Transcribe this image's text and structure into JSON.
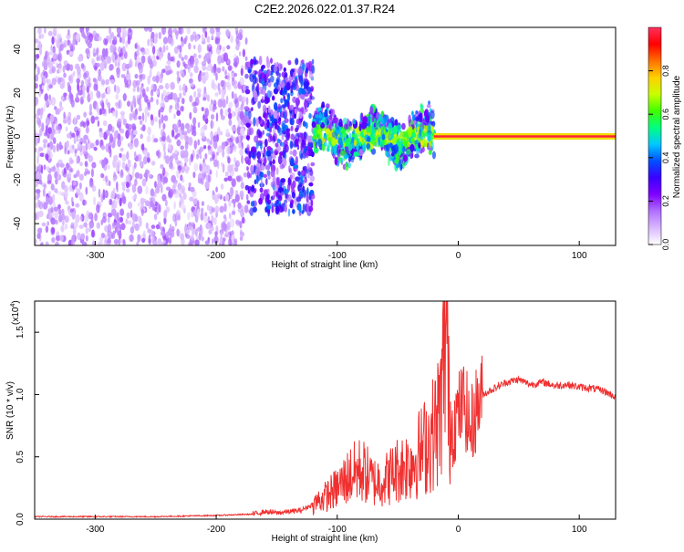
{
  "title": "C2E2.2026.022.01.37.R24",
  "chart_data": [
    {
      "type": "heatmap",
      "xlabel": "Height of straight line (km)",
      "ylabel": "Frequency (Hz)",
      "xlim": [
        -350,
        130
      ],
      "ylim": [
        -50,
        50
      ],
      "x_ticks": [
        "-300",
        "-200",
        "-100",
        "0",
        "100"
      ],
      "x_tick_values": [
        -300,
        -200,
        -100,
        0,
        100
      ],
      "y_ticks": [
        "-40",
        "-20",
        "0",
        "20",
        "40"
      ],
      "y_tick_values": [
        -40,
        -20,
        0,
        20,
        40
      ],
      "colorbar": {
        "label": "Normalized spectral amplitude",
        "range": [
          0,
          1
        ],
        "ticks": [
          "0.0",
          "0.2",
          "0.4",
          "0.6",
          "0.8"
        ],
        "tick_values": [
          0,
          0.2,
          0.4,
          0.6,
          0.8
        ],
        "stops": [
          "#ffffff",
          "#d9b8ff",
          "#b070ff",
          "#8000ff",
          "#3a00ff",
          "#0050ff",
          "#00c8ff",
          "#00ff80",
          "#40ff00",
          "#c8ff00",
          "#ffd000",
          "#ff7000",
          "#ff0000",
          "#ff3060"
        ]
      },
      "regions": [
        {
          "x_from": -350,
          "x_to": -175,
          "description_level": 0.15,
          "spread": 50
        },
        {
          "x_from": -175,
          "x_to": -120,
          "description_level": 0.35,
          "spread": 35
        },
        {
          "x_from": -120,
          "x_to": -20,
          "description_level": 0.5,
          "spread": 12
        },
        {
          "x_from": -20,
          "x_to": 130,
          "description_level": 0.97,
          "spread": 1
        }
      ]
    },
    {
      "type": "line",
      "xlabel": "Height of straight line (km)",
      "ylabel": "SNR (10 * v/v)",
      "multiplier_label": "(x10",
      "multiplier_exp": "4",
      "xlim": [
        -350,
        130
      ],
      "ylim": [
        0,
        1.75
      ],
      "x_ticks": [
        "-300",
        "-200",
        "-100",
        "0",
        "100"
      ],
      "x_tick_values": [
        -300,
        -200,
        -100,
        0,
        100
      ],
      "y_ticks": [
        "0.0",
        "0.5",
        "1.0",
        "1.5"
      ],
      "y_tick_values": [
        0,
        0.5,
        1.0,
        1.5
      ],
      "series": [
        {
          "color": "#f03030",
          "x": [
            -350,
            -300,
            -250,
            -200,
            -170,
            -160,
            -150,
            -140,
            -130,
            -120,
            -110,
            -100,
            -90,
            -80,
            -70,
            -60,
            -50,
            -40,
            -30,
            -20,
            -15,
            -12,
            -10,
            -8,
            -5,
            0,
            5,
            10,
            15,
            20,
            30,
            40,
            50,
            60,
            70,
            80,
            90,
            100,
            110,
            120,
            130
          ],
          "y": [
            0.02,
            0.02,
            0.02,
            0.03,
            0.04,
            0.06,
            0.05,
            0.06,
            0.07,
            0.12,
            0.18,
            0.25,
            0.35,
            0.4,
            0.3,
            0.32,
            0.4,
            0.45,
            0.55,
            0.7,
            0.85,
            1.2,
            1.72,
            0.9,
            0.75,
            0.85,
            0.95,
            0.7,
            0.9,
            1.0,
            1.05,
            1.1,
            1.12,
            1.08,
            1.1,
            1.07,
            1.08,
            1.06,
            1.05,
            1.03,
            0.98
          ]
        }
      ]
    }
  ]
}
